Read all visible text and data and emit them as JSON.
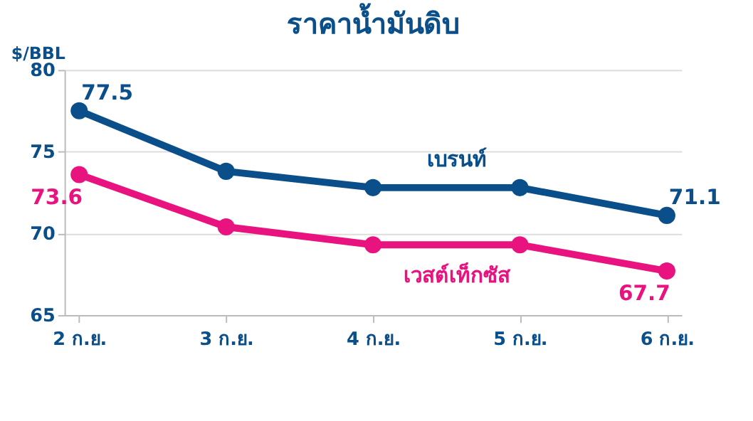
{
  "chart_data": {
    "type": "line",
    "title": "ราคาน้ำมันดิบ",
    "ylabel": "$/BBL",
    "categories": [
      "2 ก.ย.",
      "3 ก.ย.",
      "4 ก.ย.",
      "5 ก.ย.",
      "6 ก.ย."
    ],
    "series": [
      {
        "name": "เบรนท์",
        "color": "#0b4f8a",
        "values": [
          77.5,
          73.8,
          72.8,
          72.8,
          71.1
        ],
        "value_labels": [
          "77.5",
          null,
          null,
          null,
          "71.1"
        ]
      },
      {
        "name": "เวสต์เท็กซัส",
        "color": "#e8137f",
        "values": [
          73.6,
          70.4,
          69.3,
          69.3,
          67.7
        ],
        "value_labels": [
          "73.6",
          null,
          null,
          null,
          "67.7"
        ]
      }
    ],
    "ylim": [
      65,
      80
    ],
    "yticks": [
      65,
      70,
      75,
      80
    ],
    "grid": "y",
    "legend": false,
    "marker": "circle",
    "line_style": "solid"
  }
}
